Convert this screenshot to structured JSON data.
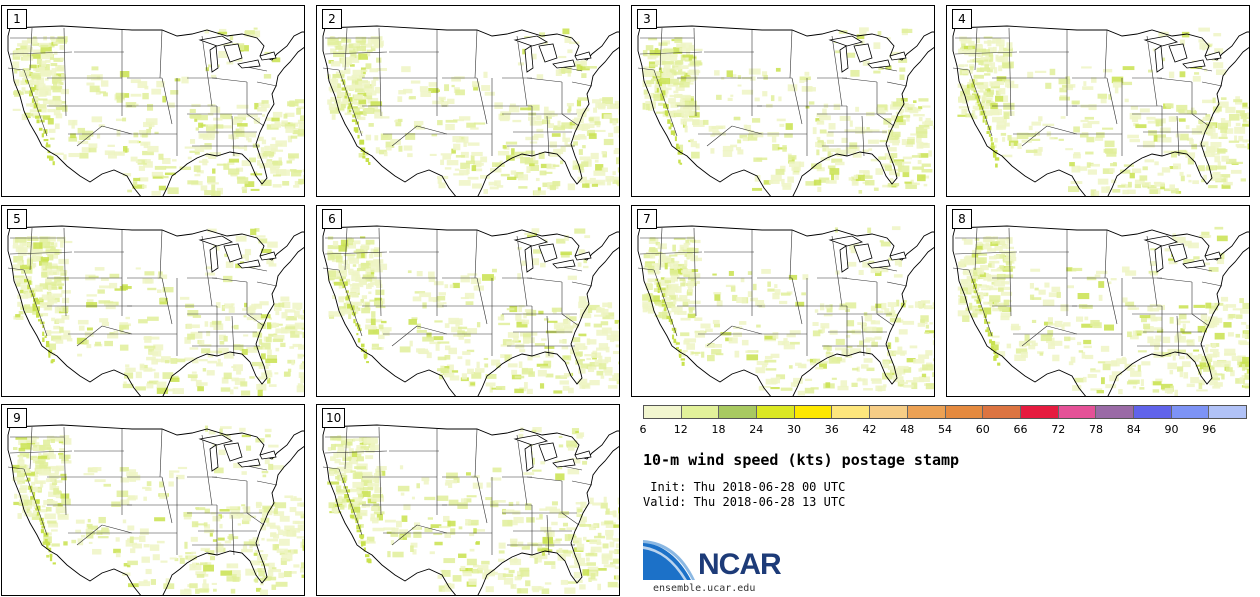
{
  "figure": {
    "title": "10-m wind speed (kts) postage stamp",
    "init": " Init: Thu 2018-06-28 00 UTC",
    "valid": "Valid: Thu 2018-06-28 13 UTC",
    "logo_text": "NCAR",
    "logo_url": "ensemble.ucar.edu"
  },
  "members": [
    "1",
    "2",
    "3",
    "4",
    "5",
    "6",
    "7",
    "8",
    "9",
    "10"
  ],
  "legend": {
    "ticks": [
      "6",
      "12",
      "18",
      "24",
      "30",
      "36",
      "42",
      "48",
      "54",
      "60",
      "66",
      "72",
      "78",
      "84",
      "90",
      "96"
    ],
    "colors": [
      "#f2f6cf",
      "#e2f19a",
      "#a8c960",
      "#dbe823",
      "#fde800",
      "#fde67c",
      "#f6cd86",
      "#eca154",
      "#e58a3f",
      "#dc7441",
      "#e61b3f",
      "#e55197",
      "#9a6aa6",
      "#6063ea",
      "#7d93f5",
      "#b1c2f7"
    ]
  },
  "map": {
    "land_color": "#ffffff",
    "border_color": "#333333",
    "coast_color": "#000000",
    "shading_light": "#eef5c4",
    "shading_mid": "#e0ef9a",
    "shading_strong": "#c9e24f"
  }
}
